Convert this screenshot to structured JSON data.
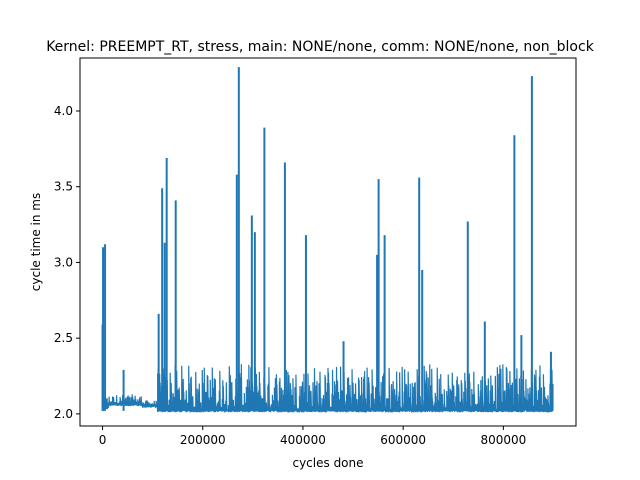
{
  "chart_data": {
    "type": "line",
    "title": "Kernel: PREEMPT_RT, stress, main: NONE/none, comm: NONE/none, non_block",
    "xlabel": "cycles done",
    "ylabel": "cycle time in ms",
    "xlim": [
      -45000,
      945000
    ],
    "ylim": [
      1.92,
      4.35
    ],
    "xticks": [
      0,
      200000,
      400000,
      600000,
      800000
    ],
    "xtick_labels": [
      "0",
      "200000",
      "400000",
      "600000",
      "800000"
    ],
    "yticks": [
      2.0,
      2.5,
      3.0,
      3.5,
      4.0
    ],
    "ytick_labels": [
      "2.0",
      "2.5",
      "3.0",
      "3.5",
      "4.0"
    ],
    "grid": false,
    "line_color": "#1f77b4",
    "segments": [
      {
        "from": 0,
        "to": 12000,
        "base": 2.03,
        "noise": 0.08
      },
      {
        "from": 12000,
        "to": 80000,
        "base": 2.05,
        "noise": 0.06
      },
      {
        "from": 80000,
        "to": 110000,
        "base": 2.04,
        "noise": 0.03
      },
      {
        "from": 110000,
        "to": 900000,
        "base": 2.01,
        "noise": 0.3
      }
    ],
    "spikes": [
      {
        "x": 0,
        "y": 2.59
      },
      {
        "x": 1000,
        "y": 3.1
      },
      {
        "x": 5000,
        "y": 3.12
      },
      {
        "x": 42000,
        "y": 2.29
      },
      {
        "x": 112000,
        "y": 2.66
      },
      {
        "x": 119000,
        "y": 3.49
      },
      {
        "x": 124000,
        "y": 3.13
      },
      {
        "x": 128000,
        "y": 3.69
      },
      {
        "x": 146000,
        "y": 3.41
      },
      {
        "x": 268000,
        "y": 3.58
      },
      {
        "x": 272000,
        "y": 4.29
      },
      {
        "x": 298000,
        "y": 3.31
      },
      {
        "x": 304000,
        "y": 3.2
      },
      {
        "x": 323000,
        "y": 3.89
      },
      {
        "x": 364000,
        "y": 3.66
      },
      {
        "x": 406000,
        "y": 3.18
      },
      {
        "x": 481000,
        "y": 2.48
      },
      {
        "x": 548000,
        "y": 3.05
      },
      {
        "x": 551000,
        "y": 3.55
      },
      {
        "x": 563000,
        "y": 3.18
      },
      {
        "x": 632000,
        "y": 3.56
      },
      {
        "x": 638000,
        "y": 2.95
      },
      {
        "x": 729000,
        "y": 3.27
      },
      {
        "x": 763000,
        "y": 2.61
      },
      {
        "x": 822000,
        "y": 3.84
      },
      {
        "x": 836000,
        "y": 2.52
      },
      {
        "x": 857000,
        "y": 4.23
      },
      {
        "x": 895000,
        "y": 2.41
      }
    ]
  }
}
